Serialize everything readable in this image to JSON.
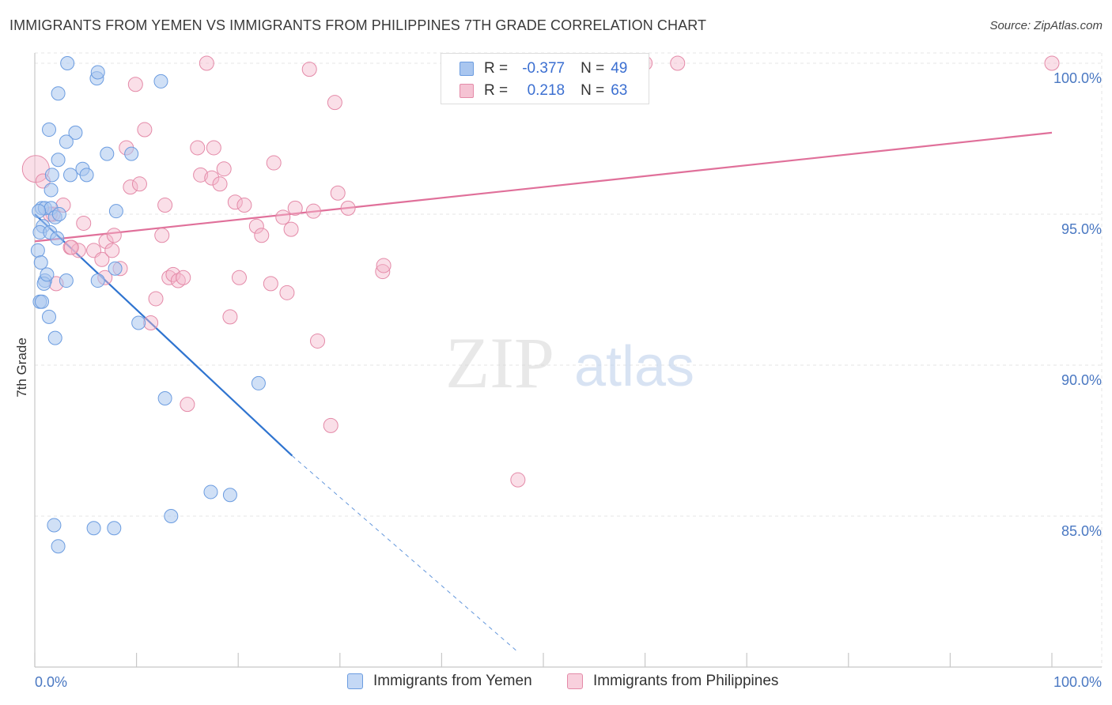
{
  "header": {
    "title": "IMMIGRANTS FROM YEMEN VS IMMIGRANTS FROM PHILIPPINES 7TH GRADE CORRELATION CHART",
    "source": "Source: ZipAtlas.com"
  },
  "watermark": {
    "zip": "ZIP",
    "atlas": "atlas"
  },
  "legend_top": {
    "rows": [
      {
        "r_label": "R =",
        "r_value": "-0.377",
        "n_label": "N =",
        "n_value": "49"
      },
      {
        "r_label": "R =",
        "r_value": "0.218",
        "n_label": "N =",
        "n_value": "63"
      }
    ]
  },
  "legend_bottom": {
    "items": [
      {
        "label": "Immigrants from Yemen"
      },
      {
        "label": "Immigrants from Philippines"
      }
    ]
  },
  "colors": {
    "yemen_fill": "#a9c6ef",
    "yemen_stroke": "#6b9ce0",
    "yemen_line": "#2f74d0",
    "philippines_fill": "#f5b8cb",
    "philippines_stroke": "#e48aa8",
    "philippines_line": "#e0709a",
    "axis_label": "#4a78c2",
    "grid": "#e6e6e6"
  },
  "chart_data": {
    "type": "scatter",
    "xlabel": "",
    "ylabel": "7th Grade",
    "xlim": [
      0,
      100
    ],
    "ylim": [
      80.5,
      100.8
    ],
    "x_tick_labels": [
      "0.0%",
      "100.0%"
    ],
    "y_ticks": [
      85,
      90,
      95,
      100
    ],
    "y_tick_labels": [
      "85.0%",
      "90.0%",
      "95.0%",
      "100.0%"
    ],
    "grid": true,
    "series": [
      {
        "name": "Immigrants from Yemen",
        "r": -0.377,
        "n": 49,
        "trend": {
          "x": [
            0,
            25.3
          ],
          "y": [
            95.0,
            87.0
          ],
          "dashed_to": {
            "x": 47.5,
            "y": 80.5
          }
        },
        "points": [
          [
            3.2,
            100.0
          ],
          [
            6.1,
            99.5
          ],
          [
            6.2,
            99.7
          ],
          [
            12.4,
            99.4
          ],
          [
            2.3,
            99.0
          ],
          [
            1.4,
            97.8
          ],
          [
            4.0,
            97.7
          ],
          [
            3.1,
            97.4
          ],
          [
            7.1,
            97.0
          ],
          [
            9.5,
            97.0
          ],
          [
            2.3,
            96.8
          ],
          [
            4.7,
            96.5
          ],
          [
            1.7,
            96.3
          ],
          [
            3.5,
            96.3
          ],
          [
            5.1,
            96.3
          ],
          [
            1.6,
            95.8
          ],
          [
            0.7,
            95.2
          ],
          [
            1.0,
            95.2
          ],
          [
            1.6,
            95.2
          ],
          [
            8.0,
            95.1
          ],
          [
            2.0,
            94.9
          ],
          [
            0.8,
            94.6
          ],
          [
            0.5,
            94.4
          ],
          [
            1.5,
            94.4
          ],
          [
            2.2,
            94.2
          ],
          [
            0.3,
            93.8
          ],
          [
            0.6,
            93.4
          ],
          [
            7.9,
            93.2
          ],
          [
            1.0,
            92.8
          ],
          [
            3.1,
            92.8
          ],
          [
            6.2,
            92.8
          ],
          [
            0.9,
            92.7
          ],
          [
            0.5,
            92.1
          ],
          [
            0.7,
            92.1
          ],
          [
            1.4,
            91.6
          ],
          [
            10.2,
            91.4
          ],
          [
            2.0,
            90.9
          ],
          [
            22.0,
            89.4
          ],
          [
            12.8,
            88.9
          ],
          [
            17.3,
            85.8
          ],
          [
            19.2,
            85.7
          ],
          [
            13.4,
            85.0
          ],
          [
            1.9,
            84.7
          ],
          [
            5.8,
            84.6
          ],
          [
            7.8,
            84.6
          ],
          [
            2.3,
            84.0
          ],
          [
            0.4,
            95.1
          ],
          [
            2.4,
            95.0
          ],
          [
            1.2,
            93.0
          ]
        ]
      },
      {
        "name": "Immigrants from Philippines",
        "r": 0.218,
        "n": 63,
        "trend": {
          "x": [
            0,
            100
          ],
          "y": [
            94.1,
            97.7
          ]
        },
        "points": [
          [
            0.1,
            96.5
          ],
          [
            0.8,
            96.1
          ],
          [
            1.8,
            95.0
          ],
          [
            2.8,
            95.3
          ],
          [
            3.5,
            93.9
          ],
          [
            4.3,
            93.8
          ],
          [
            4.8,
            94.7
          ],
          [
            5.8,
            93.8
          ],
          [
            6.6,
            93.5
          ],
          [
            7.0,
            94.1
          ],
          [
            7.6,
            93.8
          ],
          [
            7.8,
            94.3
          ],
          [
            8.4,
            93.2
          ],
          [
            9.0,
            97.2
          ],
          [
            9.4,
            95.9
          ],
          [
            9.9,
            99.3
          ],
          [
            10.3,
            96.0
          ],
          [
            10.8,
            97.8
          ],
          [
            11.4,
            91.4
          ],
          [
            11.9,
            92.2
          ],
          [
            12.5,
            94.3
          ],
          [
            12.8,
            95.3
          ],
          [
            13.2,
            92.9
          ],
          [
            13.6,
            93.0
          ],
          [
            14.1,
            92.8
          ],
          [
            14.6,
            92.9
          ],
          [
            15.0,
            88.7
          ],
          [
            16.0,
            97.2
          ],
          [
            16.3,
            96.3
          ],
          [
            16.9,
            100.0
          ],
          [
            17.4,
            96.2
          ],
          [
            17.6,
            97.2
          ],
          [
            18.2,
            96.0
          ],
          [
            18.6,
            96.5
          ],
          [
            19.2,
            91.6
          ],
          [
            19.7,
            95.4
          ],
          [
            20.1,
            92.9
          ],
          [
            20.6,
            95.3
          ],
          [
            21.8,
            94.6
          ],
          [
            22.3,
            94.3
          ],
          [
            23.2,
            92.7
          ],
          [
            23.5,
            96.7
          ],
          [
            24.4,
            94.9
          ],
          [
            24.8,
            92.4
          ],
          [
            25.2,
            94.5
          ],
          [
            25.6,
            95.2
          ],
          [
            27.0,
            99.8
          ],
          [
            27.4,
            95.1
          ],
          [
            27.8,
            90.8
          ],
          [
            29.1,
            88.0
          ],
          [
            29.5,
            98.7
          ],
          [
            29.8,
            95.7
          ],
          [
            30.8,
            95.2
          ],
          [
            34.2,
            93.1
          ],
          [
            34.3,
            93.3
          ],
          [
            47.5,
            86.2
          ],
          [
            60.0,
            100.0
          ],
          [
            63.2,
            100.0
          ],
          [
            100.0,
            100.0
          ],
          [
            2.1,
            92.7
          ],
          [
            6.9,
            92.9
          ],
          [
            1.5,
            95.0
          ],
          [
            3.6,
            93.9
          ]
        ]
      }
    ]
  }
}
